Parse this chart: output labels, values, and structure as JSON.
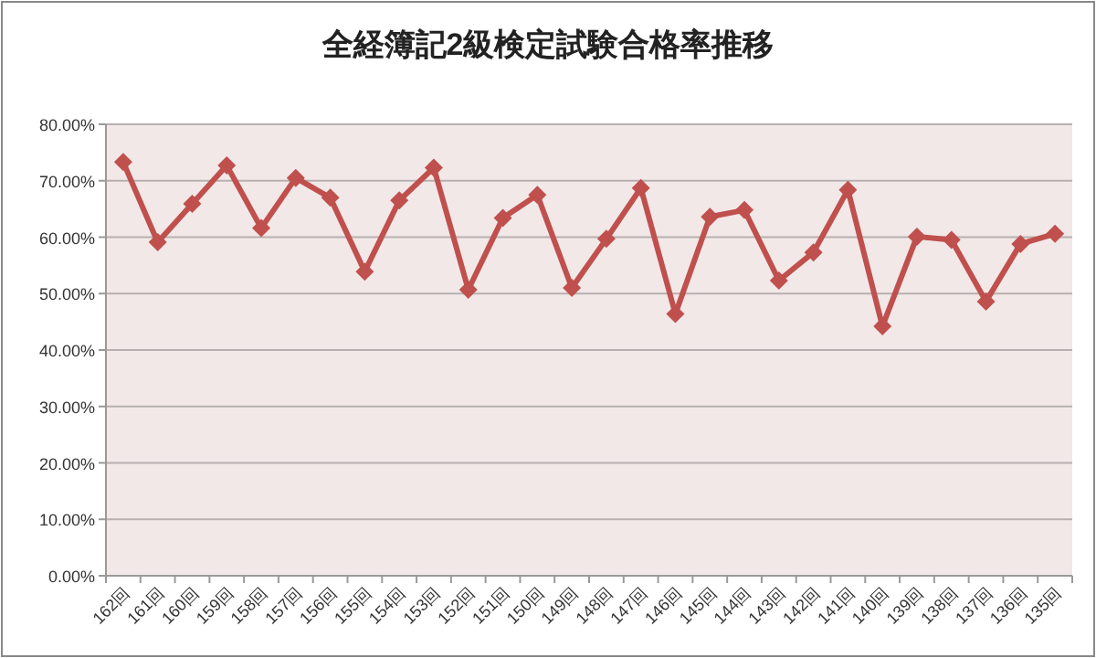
{
  "chart_data": {
    "type": "line",
    "title": "全経簿記2級検定試験合格率推移",
    "categories": [
      "162回",
      "161回",
      "160回",
      "159回",
      "158回",
      "157回",
      "156回",
      "155回",
      "154回",
      "153回",
      "152回",
      "151回",
      "150回",
      "149回",
      "148回",
      "147回",
      "146回",
      "145回",
      "144回",
      "143回",
      "142回",
      "141回",
      "140回",
      "139回",
      "138回",
      "137回",
      "136回",
      "135回"
    ],
    "series": [
      {
        "color": "#c0504d",
        "values": [
          73.3,
          59.1,
          65.9,
          72.7,
          61.6,
          70.5,
          67.0,
          53.9,
          66.5,
          72.3,
          50.7,
          63.4,
          67.5,
          51.0,
          59.7,
          68.7,
          46.4,
          63.6,
          64.8,
          52.3,
          57.3,
          68.4,
          44.2,
          60.1,
          59.5,
          48.6,
          58.8,
          60.6
        ]
      }
    ],
    "ylim": [
      0,
      80
    ],
    "yticks": [
      {
        "value": 0,
        "label": "0.00%"
      },
      {
        "value": 10,
        "label": "10.00%"
      },
      {
        "value": 20,
        "label": "20.00%"
      },
      {
        "value": 30,
        "label": "30.00%"
      },
      {
        "value": 40,
        "label": "40.00%"
      },
      {
        "value": 50,
        "label": "50.00%"
      },
      {
        "value": 60,
        "label": "60.00%"
      },
      {
        "value": 70,
        "label": "70.00%"
      },
      {
        "value": 80,
        "label": "80.00%"
      }
    ],
    "grid": "y",
    "marker": "diamond",
    "line_style": "solid"
  }
}
